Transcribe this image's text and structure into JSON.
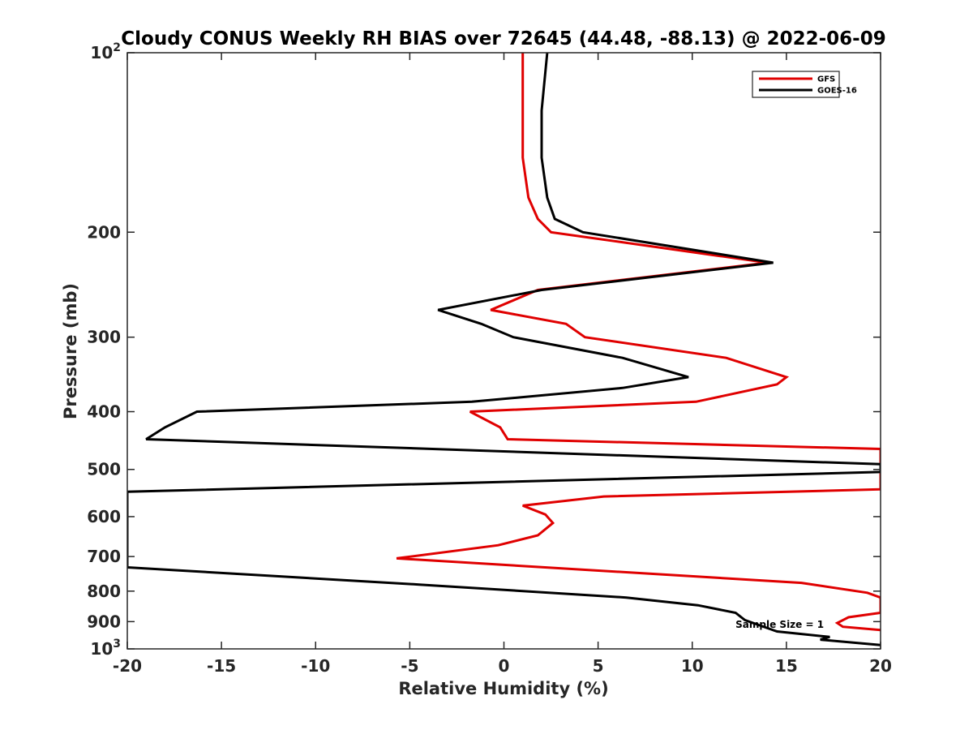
{
  "chart_data": {
    "type": "line",
    "title": "Cloudy CONUS Weekly RH BIAS over 72645 (44.48, -88.13) @ 2022-06-09",
    "xlabel": "Relative Humidity (%)",
    "ylabel": "Pressure (mb)",
    "xlim": [
      -20,
      20
    ],
    "ylim": [
      100,
      1000
    ],
    "y_scale": "log",
    "y_reversed": true,
    "grid": false,
    "legend_position": "top-right",
    "x_ticks": [
      -20,
      -15,
      -10,
      -5,
      0,
      5,
      10,
      15,
      20
    ],
    "x_tick_labels": [
      "-20",
      "-15",
      "-10",
      "-5",
      "0",
      "5",
      "10",
      "15",
      "20"
    ],
    "y_ticks": [
      100,
      200,
      300,
      400,
      500,
      600,
      700,
      800,
      900,
      1000
    ],
    "y_tick_labels": [
      {
        "base": "10",
        "exp": "2"
      },
      {
        "base": "200",
        "exp": ""
      },
      {
        "base": "300",
        "exp": ""
      },
      {
        "base": "400",
        "exp": ""
      },
      {
        "base": "500",
        "exp": ""
      },
      {
        "base": "600",
        "exp": ""
      },
      {
        "base": "700",
        "exp": ""
      },
      {
        "base": "800",
        "exp": ""
      },
      {
        "base": "900",
        "exp": ""
      },
      {
        "base": "10",
        "exp": "3"
      }
    ],
    "series": [
      {
        "name": "GFS",
        "color": "#e00000",
        "points": [
          [
            1.0,
            100
          ],
          [
            1.0,
            125
          ],
          [
            1.0,
            150
          ],
          [
            1.3,
            175
          ],
          [
            1.8,
            190
          ],
          [
            2.5,
            200
          ],
          [
            14.0,
            225
          ],
          [
            1.8,
            250
          ],
          [
            -0.7,
            270
          ],
          [
            3.3,
            285
          ],
          [
            4.3,
            300
          ],
          [
            11.8,
            325
          ],
          [
            15.0,
            350
          ],
          [
            14.5,
            360
          ],
          [
            10.2,
            385
          ],
          [
            -1.8,
            400
          ],
          [
            -0.2,
            425
          ],
          [
            0.2,
            445
          ],
          [
            20,
            462
          ],
          [
            20,
            540
          ],
          [
            5.3,
            555
          ],
          [
            1.0,
            575
          ],
          [
            2.2,
            595
          ],
          [
            2.6,
            615
          ],
          [
            1.8,
            645
          ],
          [
            -0.3,
            670
          ],
          [
            -5.7,
            705
          ],
          [
            15.8,
            775
          ],
          [
            19.3,
            805
          ],
          [
            20,
            820
          ],
          [
            20,
            870
          ],
          [
            18.3,
            885
          ],
          [
            17.7,
            905
          ],
          [
            18.0,
            918
          ],
          [
            20,
            930
          ]
        ]
      },
      {
        "name": "GOES-16",
        "color": "#000000",
        "points": [
          [
            2.3,
            100
          ],
          [
            2.0,
            125
          ],
          [
            2.0,
            150
          ],
          [
            2.3,
            175
          ],
          [
            2.7,
            190
          ],
          [
            4.2,
            200
          ],
          [
            14.3,
            225
          ],
          [
            2.0,
            250
          ],
          [
            -3.5,
            270
          ],
          [
            -1.2,
            285
          ],
          [
            0.5,
            300
          ],
          [
            6.3,
            325
          ],
          [
            9.8,
            350
          ],
          [
            6.3,
            365
          ],
          [
            -1.7,
            385
          ],
          [
            -16.3,
            400
          ],
          [
            -18.0,
            425
          ],
          [
            -19.0,
            445
          ],
          [
            20,
            490
          ],
          [
            20,
            505
          ],
          [
            -20,
            545
          ],
          [
            -20,
            730
          ],
          [
            -4.5,
            780
          ],
          [
            6.5,
            820
          ],
          [
            10.3,
            845
          ],
          [
            12.3,
            870
          ],
          [
            12.8,
            895
          ],
          [
            14.5,
            935
          ],
          [
            17.3,
            955
          ],
          [
            16.8,
            965
          ],
          [
            20,
            985
          ]
        ]
      }
    ],
    "annotations": [
      {
        "text": "Sample Size = 1",
        "x": 12.3,
        "y": 910
      }
    ]
  }
}
